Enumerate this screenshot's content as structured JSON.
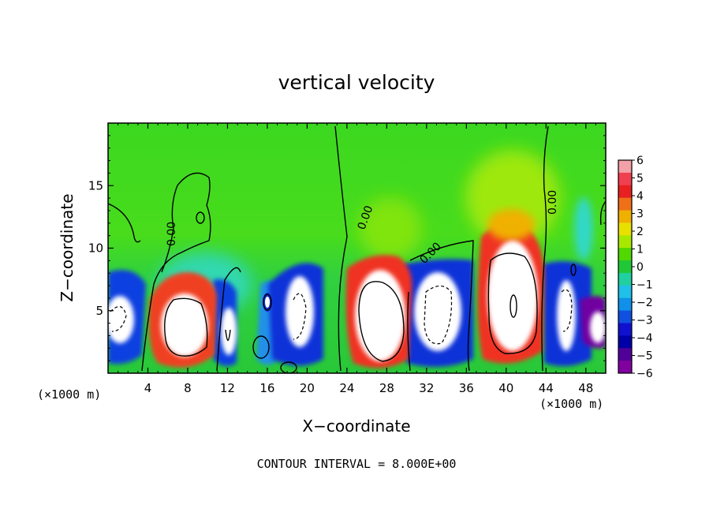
{
  "chart_data": {
    "type": "heatmap",
    "title": "vertical velocity",
    "xlabel": "X−coordinate",
    "ylabel": "Z−coordinate",
    "x_unit_left": "(×1000 m)",
    "x_unit_right": "(×1000 m)",
    "x_range": [
      0,
      50
    ],
    "z_range": [
      0,
      20
    ],
    "x_ticks": [
      "4",
      "8",
      "12",
      "16",
      "20",
      "24",
      "28",
      "32",
      "36",
      "40",
      "44",
      "48"
    ],
    "x_tick_values": [
      4,
      8,
      12,
      16,
      20,
      24,
      28,
      32,
      36,
      40,
      44,
      48
    ],
    "z_ticks": [
      "5",
      "10",
      "15"
    ],
    "z_tick_values": [
      5,
      10,
      15
    ],
    "colorbar": {
      "range": [
        -6,
        6
      ],
      "labels": [
        "6",
        "5",
        "4",
        "3",
        "2",
        "1",
        "0",
        "−1",
        "−2",
        "−3",
        "−4",
        "−5",
        "−6"
      ],
      "label_values": [
        6,
        5,
        4,
        3,
        2,
        1,
        0,
        -1,
        -2,
        -3,
        -4,
        -5,
        -6
      ],
      "colors": [
        "#f4a0a8",
        "#f04050",
        "#e82020",
        "#f07018",
        "#f0b000",
        "#e8e000",
        "#a8e800",
        "#50d800",
        "#20c838",
        "#20d0a0",
        "#20c0e8",
        "#1090e8",
        "#1050e0",
        "#1010d0",
        "#0000a8",
        "#500098",
        "#8000a0"
      ]
    },
    "contour_labels": [
      "0.00",
      "0.00",
      "0.00",
      "0.00"
    ],
    "footer": "CONTOUR INTERVAL = 8.000E+00",
    "cells": [
      {
        "x": 2,
        "z": 4.5,
        "w": -4.5
      },
      {
        "x": 8,
        "z": 4.5,
        "w": 6
      },
      {
        "x": 12.5,
        "z": 3.5,
        "w": -5
      },
      {
        "x": 15.5,
        "z": 6,
        "w": -3
      },
      {
        "x": 19,
        "z": 5,
        "w": -5
      },
      {
        "x": 27.5,
        "z": 4.8,
        "w": 6
      },
      {
        "x": 33,
        "z": 4.5,
        "w": -5
      },
      {
        "x": 40,
        "z": 5.5,
        "w": 6
      },
      {
        "x": 46,
        "z": 4.5,
        "w": -5
      },
      {
        "x": 49.5,
        "z": 3.2,
        "w": -6
      }
    ]
  }
}
